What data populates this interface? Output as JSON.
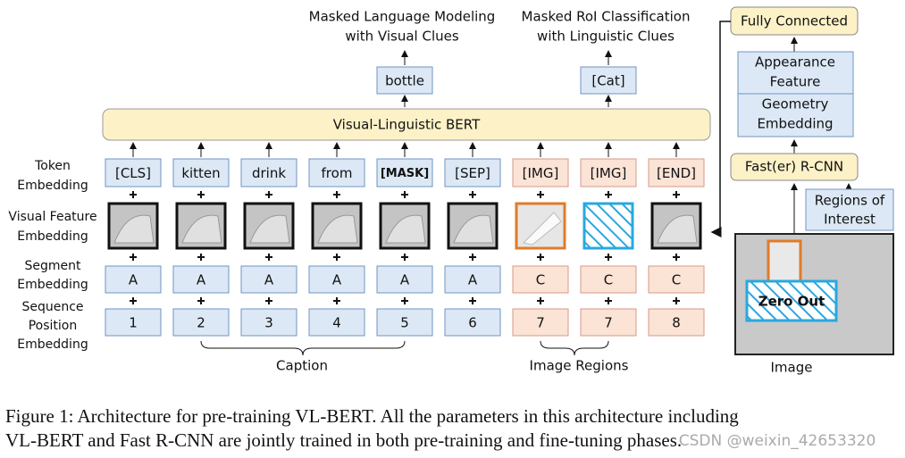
{
  "outputs": [
    {
      "task": [
        "Masked Language Modeling",
        "with Visual Clues"
      ],
      "token": "bottle",
      "column": 4
    },
    {
      "task": [
        "Masked RoI Classification",
        "with Linguistic Clues"
      ],
      "token": "[Cat]",
      "column": 7
    }
  ],
  "bert": "Visual-Linguistic BERT",
  "row_labels": {
    "token": [
      "Token",
      "Embedding"
    ],
    "visual": [
      "Visual Feature",
      "Embedding"
    ],
    "segment": [
      "Segment",
      "Embedding"
    ],
    "position": [
      "Sequence",
      "Position",
      "Embedding"
    ]
  },
  "tokens": [
    "[CLS]",
    "kitten",
    "drink",
    "from",
    "[MASK]",
    "[SEP]",
    "[IMG]",
    "[IMG]",
    "[END]"
  ],
  "segments": [
    "A",
    "A",
    "A",
    "A",
    "A",
    "A",
    "C",
    "C",
    "C"
  ],
  "positions": [
    1,
    2,
    3,
    4,
    5,
    6,
    7,
    7,
    8
  ],
  "groups": {
    "caption": "Caption",
    "image_regions": "Image Regions"
  },
  "pipeline": {
    "fc": "Fully Connected",
    "appearance": [
      "Appearance",
      "Feature"
    ],
    "geometry": [
      "Geometry",
      "Embedding"
    ],
    "rcnn": "Fast(er) R-CNN",
    "roi": [
      "Regions of",
      "Interest"
    ],
    "zero_out": "Zero Out",
    "image": "Image"
  },
  "caption": [
    "Figure 1: Architecture for pre-training VL-BERT. All the parameters in this architecture including",
    "VL-BERT and Fast R-CNN are jointly trained in both pre-training and fine-tuning phases."
  ],
  "watermark": "CSDN @weixin_42653320"
}
